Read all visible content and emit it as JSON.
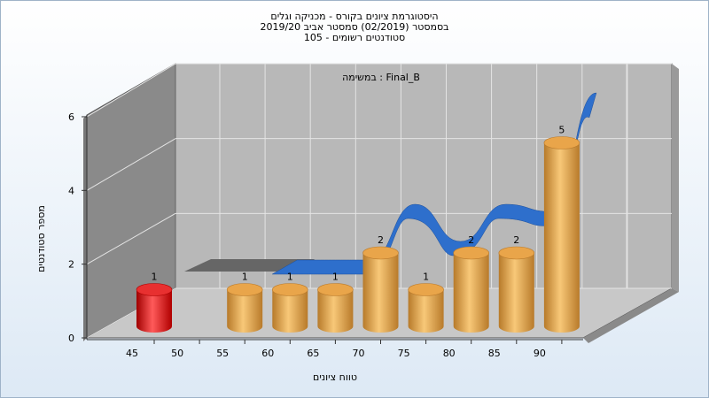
{
  "chart_data": {
    "type": "bar",
    "title": "היסטוגרמת ציונים בקורס - מכניקה וגלים",
    "subtitle_lines": [
      "בסמסטר  (02/2019)  סמסטר אביב 2019/20",
      "סטודנטים רשומים - 105"
    ],
    "annotation": "במשימה : Final_B",
    "xlabel": "טווח ציונים",
    "ylabel": "מספר סטודנטים",
    "x_ticks": [
      "45",
      "50",
      "55",
      "60",
      "65",
      "70",
      "75",
      "80",
      "85",
      "90"
    ],
    "y_ticks": [
      "0",
      "2",
      "4",
      "6"
    ],
    "ylim": [
      0,
      6
    ],
    "grid": true,
    "bars": [
      {
        "x": "45",
        "value": 1,
        "label": "1",
        "color": "#e01515"
      },
      {
        "x": "55",
        "value": 1,
        "label": "1",
        "color": "#e8a040"
      },
      {
        "x": "60",
        "value": 1,
        "label": "1",
        "color": "#e8a040"
      },
      {
        "x": "65",
        "value": 1,
        "label": "1",
        "color": "#e8a040"
      },
      {
        "x": "70",
        "value": 2,
        "label": "2",
        "color": "#e8a040"
      },
      {
        "x": "75",
        "value": 1,
        "label": "1",
        "color": "#e8a040"
      },
      {
        "x": "80",
        "value": 2,
        "label": "2",
        "color": "#e8a040"
      },
      {
        "x": "85",
        "value": 2,
        "label": "2",
        "color": "#e8a040"
      },
      {
        "x": "90",
        "value": 5,
        "label": "5",
        "color": "#e8a040"
      }
    ],
    "trend_series": {
      "type": "line",
      "color": "#2e6fcc",
      "x": [
        "50",
        "55",
        "60",
        "65",
        "70",
        "75",
        "80",
        "85",
        "90",
        "95"
      ],
      "values": [
        0,
        0,
        0,
        0,
        0,
        1.5,
        0.5,
        1.5,
        1.3,
        4.5
      ]
    },
    "colors": {
      "plot_back": "#b8b8b8",
      "plot_left": "#8a8a8a",
      "plot_floor": "#c8c8c8",
      "grid": "#e4e4e4"
    }
  }
}
